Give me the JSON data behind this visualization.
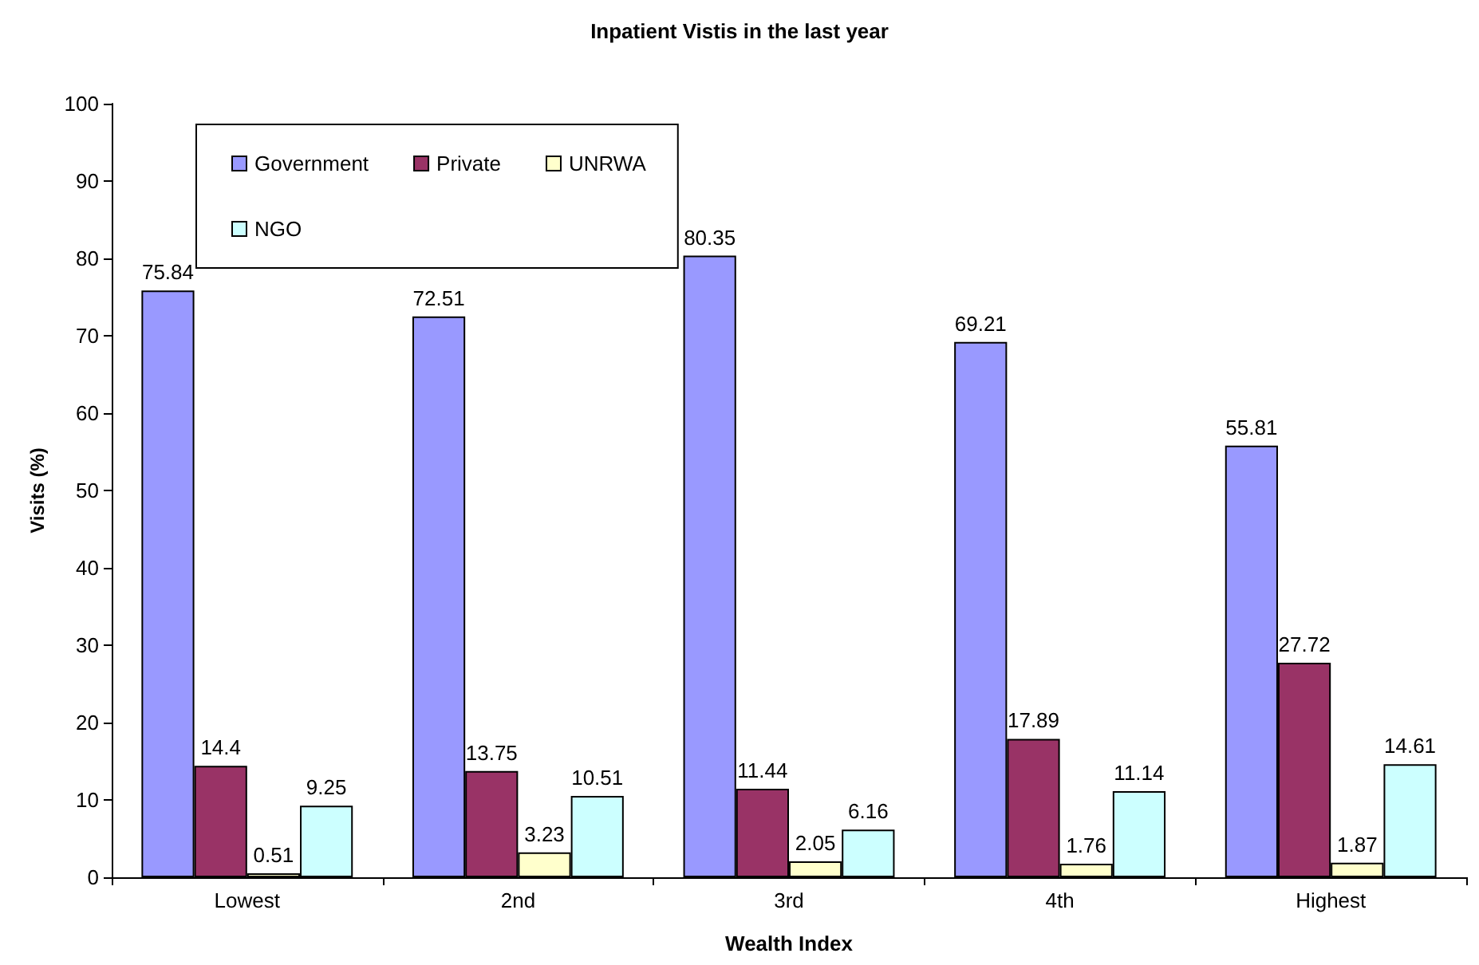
{
  "chart_data": {
    "type": "bar",
    "title": "Inpatient Vistis in the last year",
    "xlabel": "Wealth Index",
    "ylabel": "Visits (%)",
    "categories": [
      "Lowest",
      "2nd",
      "3rd",
      "4th",
      "Highest"
    ],
    "series": [
      {
        "name": "Government",
        "color": "#9999ff",
        "values": [
          75.84,
          72.51,
          80.35,
          69.21,
          55.81
        ]
      },
      {
        "name": "Private",
        "color": "#993366",
        "values": [
          14.4,
          13.75,
          11.44,
          17.89,
          27.72
        ]
      },
      {
        "name": "UNRWA",
        "color": "#ffffcc",
        "values": [
          0.51,
          3.23,
          2.05,
          1.76,
          1.87
        ]
      },
      {
        "name": "NGO",
        "color": "#ccffff",
        "values": [
          9.25,
          10.51,
          6.16,
          11.14,
          14.61
        ]
      }
    ],
    "ylim": [
      0,
      100
    ],
    "yticks": [
      0,
      10,
      20,
      30,
      40,
      50,
      60,
      70,
      80,
      90,
      100
    ],
    "grid": false,
    "legend": "top left",
    "data_labels": true
  }
}
